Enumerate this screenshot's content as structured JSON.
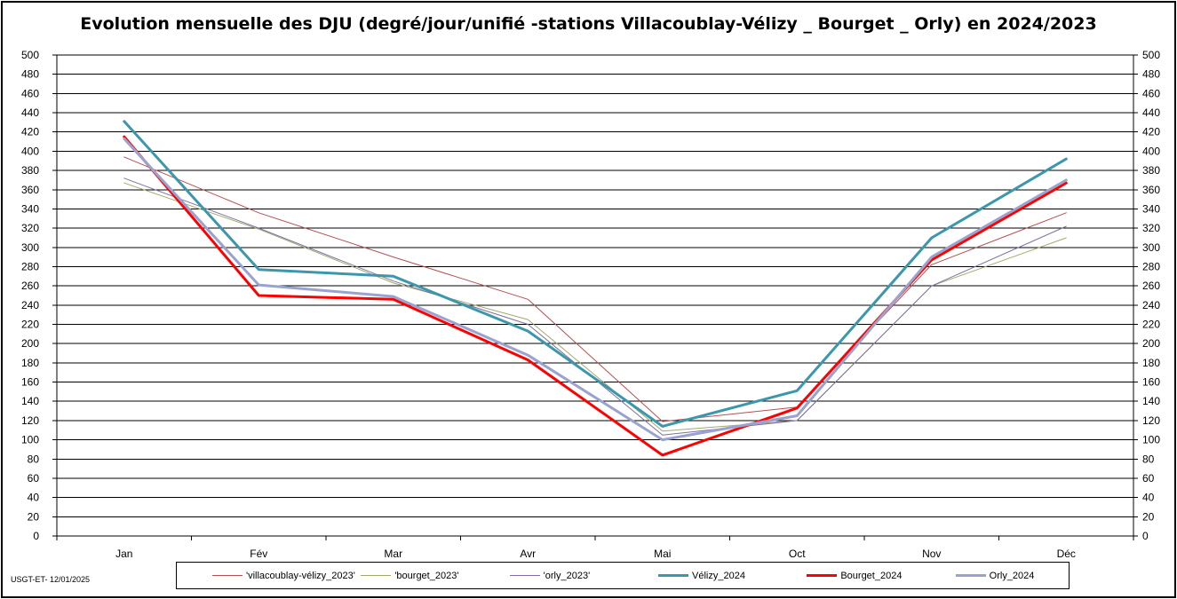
{
  "chart_data": {
    "type": "line",
    "title": "Evolution mensuelle des DJU (degré/jour/unifié  -stations Villacoublay-Vélizy _ Bourget _ Orly) en 2024/2023",
    "categories": [
      "Jan",
      "Fév",
      "Mar",
      "Avr",
      "Mai",
      "Oct",
      "Nov",
      "Déc"
    ],
    "ylim": [
      0,
      500
    ],
    "ytick_step": 20,
    "grid": "horizontal",
    "y_axis_both_sides": true,
    "legend_position": "bottom",
    "series": [
      {
        "name": "'villacoublay-vélizy_2023'",
        "color": "#b4504f",
        "width": 1,
        "values": [
          394,
          336,
          290,
          246,
          119,
          134,
          282,
          336
        ]
      },
      {
        "name": "'bourget_2023'",
        "color": "#9fab6b",
        "width": 1,
        "values": [
          367,
          319,
          263,
          225,
          109,
          120,
          260,
          310
        ]
      },
      {
        "name": "'orly_2023'",
        "color": "#7e6fa0",
        "width": 1,
        "values": [
          372,
          320,
          265,
          220,
          105,
          120,
          260,
          322
        ]
      },
      {
        "name": "Vélizy_2024",
        "color": "#3c97ad",
        "width": 3,
        "values": [
          431,
          277,
          270,
          213,
          114,
          151,
          310,
          392
        ]
      },
      {
        "name": "Bourget_2024",
        "color": "#ff0000",
        "width": 3,
        "values": [
          415,
          250,
          246,
          183,
          84,
          133,
          287,
          367
        ]
      },
      {
        "name": "Orly_2024",
        "color": "#9aa3cf",
        "width": 3,
        "values": [
          413,
          261,
          249,
          188,
          100,
          125,
          290,
          370
        ]
      }
    ]
  },
  "footer": {
    "note": "USGT-ET-  12/01/2025"
  }
}
